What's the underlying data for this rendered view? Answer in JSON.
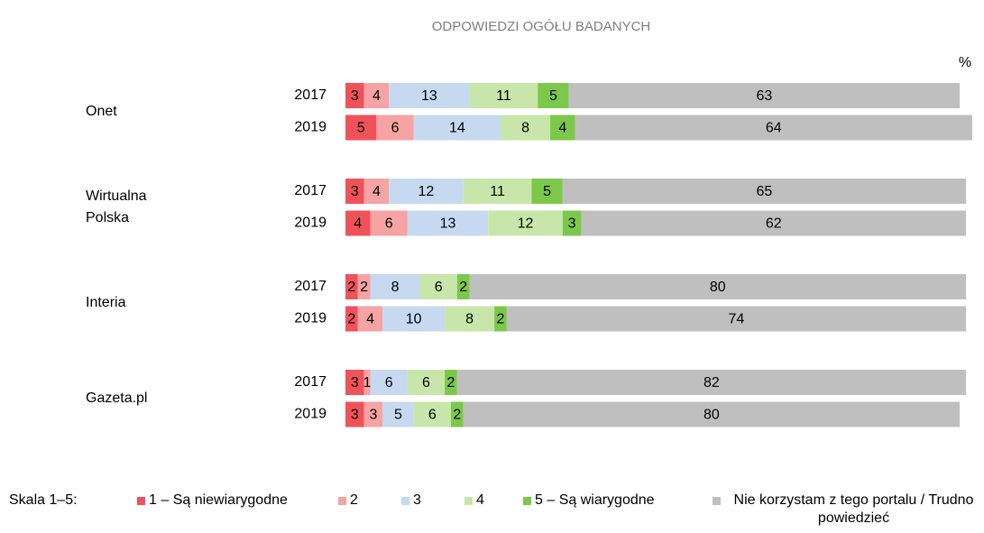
{
  "chart_data": {
    "type": "stacked-bar-horizontal",
    "title": "ODPOWIEDZI OGÓŁU BADANYCH",
    "unit_label": "%",
    "groups": [
      "Onet",
      "Wirtualna Polska",
      "Interia",
      "Gazeta.pl"
    ],
    "categories": [
      "2017",
      "2019",
      "2017",
      "2019",
      "2017",
      "2019",
      "2017",
      "2019"
    ],
    "legend_title": "Skala 1–5:",
    "xlim": [
      0,
      100
    ],
    "series": [
      {
        "name": "1 – Są niewiarygodne",
        "color": "#f0525a",
        "values": [
          3,
          5,
          3,
          4,
          2,
          2,
          3,
          3
        ]
      },
      {
        "name": "2",
        "color": "#f5a3a3",
        "values": [
          4,
          6,
          4,
          6,
          2,
          4,
          1,
          3
        ]
      },
      {
        "name": "3",
        "color": "#c6d9f0",
        "values": [
          13,
          14,
          12,
          13,
          8,
          10,
          6,
          5
        ]
      },
      {
        "name": "4",
        "color": "#c8e6a9",
        "values": [
          11,
          8,
          11,
          12,
          6,
          8,
          6,
          6
        ]
      },
      {
        "name": "5 – Są wiarygodne",
        "color": "#7cc84a",
        "values": [
          5,
          4,
          5,
          3,
          2,
          2,
          2,
          2
        ]
      },
      {
        "name": "Nie korzystam z tego portalu / Trudno powiedzieć",
        "color": "#bfbfbf",
        "values": [
          63,
          64,
          65,
          62,
          80,
          74,
          82,
          80
        ]
      }
    ]
  }
}
